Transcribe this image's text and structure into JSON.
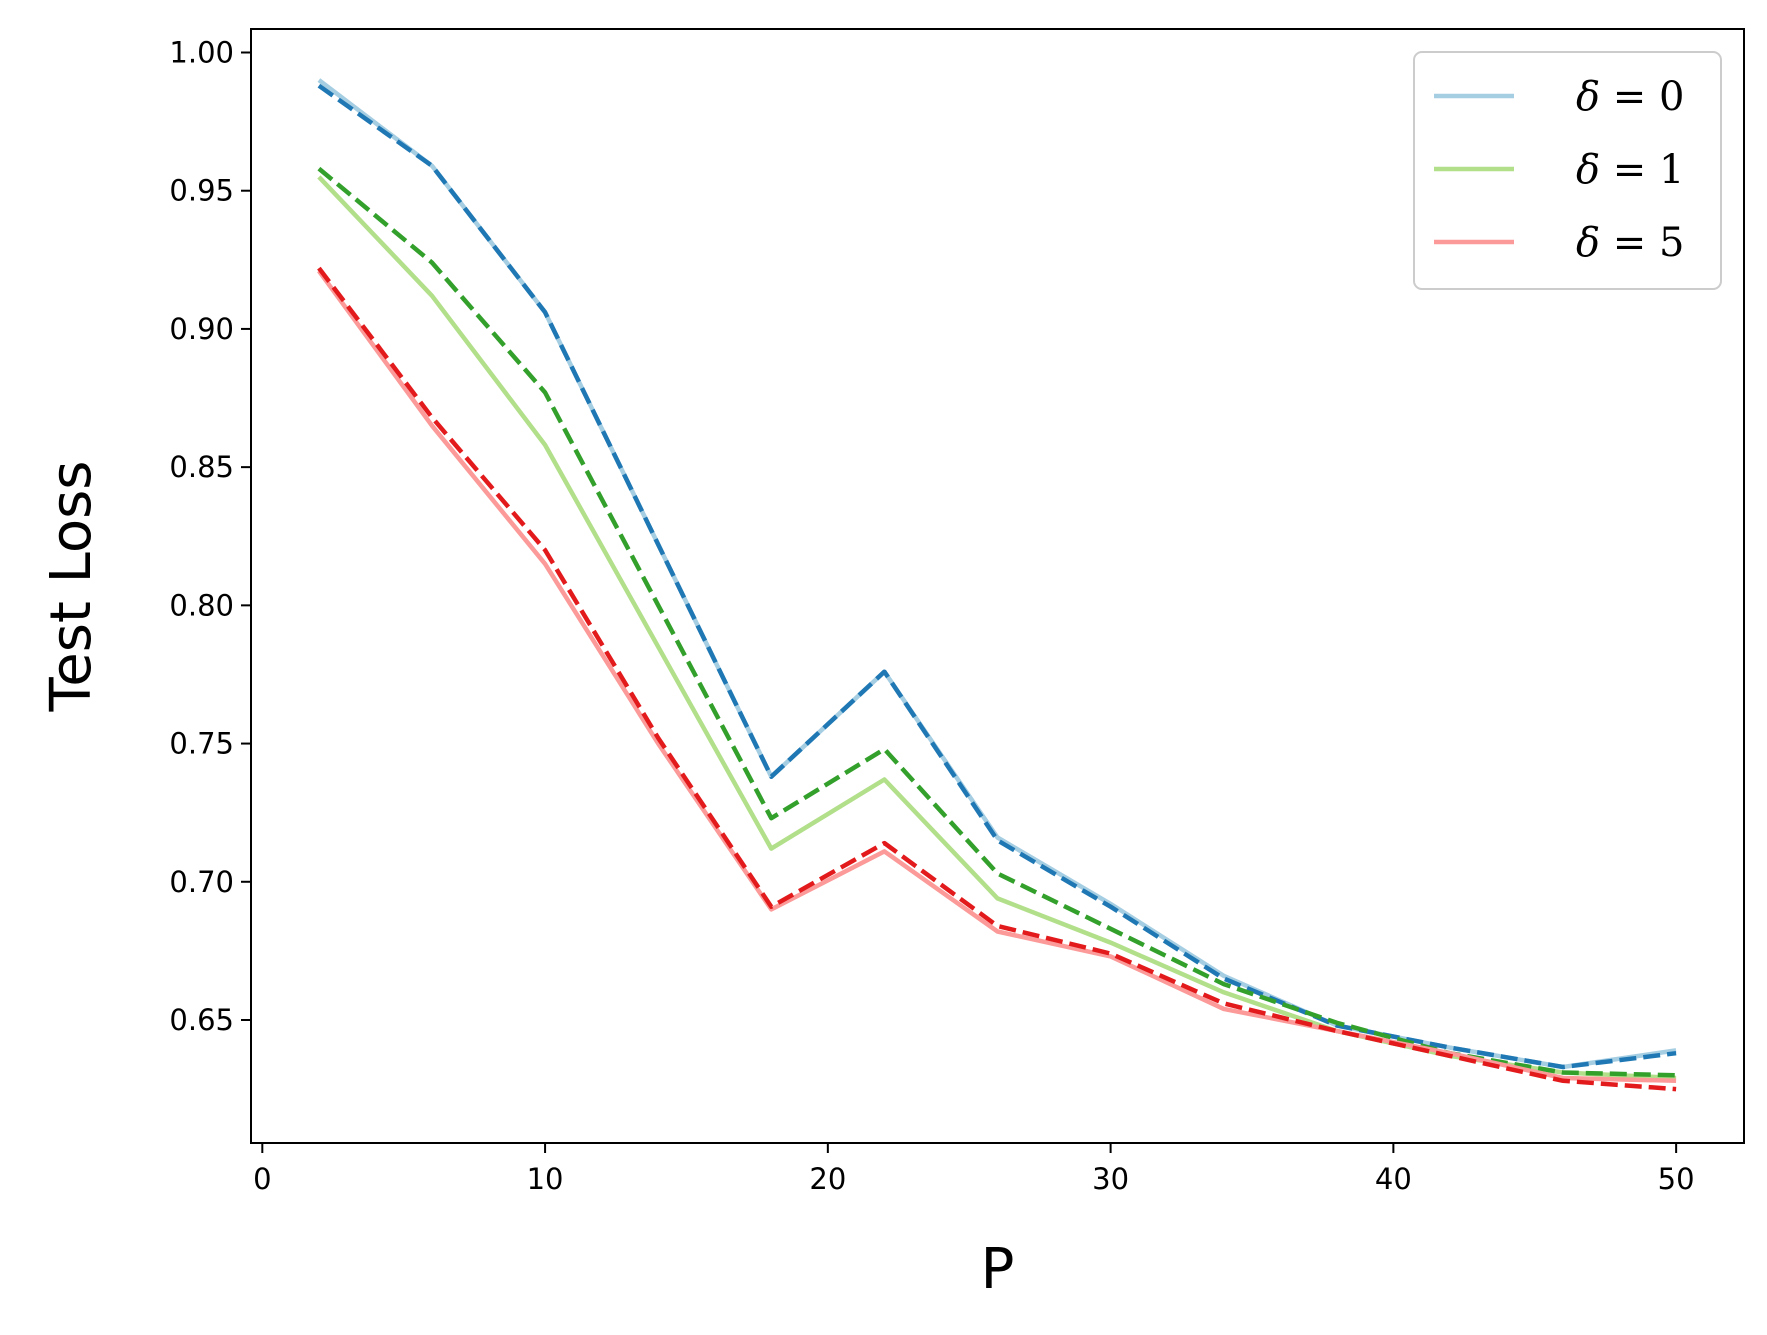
{
  "chart_data": {
    "type": "line",
    "title": "",
    "xlabel": "P",
    "ylabel": "Test Loss",
    "xlim": [
      -0.4,
      52.4
    ],
    "ylim": [
      0.6055,
      1.0085
    ],
    "xticks": [
      0,
      10,
      20,
      30,
      40,
      50
    ],
    "xtick_labels": [
      "0",
      "10",
      "20",
      "30",
      "40",
      "50"
    ],
    "yticks": [
      0.65,
      0.7,
      0.75,
      0.8,
      0.85,
      0.9,
      0.95,
      1.0
    ],
    "ytick_labels": [
      "0.65",
      "0.70",
      "0.75",
      "0.80",
      "0.85",
      "0.90",
      "0.95",
      "1.00"
    ],
    "grid": false,
    "legend_position": "top-right",
    "x": [
      2,
      6,
      10,
      14,
      18,
      22,
      26,
      30,
      34,
      38,
      42,
      46,
      50
    ],
    "series": [
      {
        "name": "δ = 0",
        "legend_var": "δ",
        "legend_rest": " = 0",
        "color": "#a6cee3",
        "style": "solid",
        "in_legend": true,
        "values": [
          0.99,
          0.959,
          0.906,
          0.822,
          0.738,
          0.776,
          0.716,
          0.692,
          0.666,
          0.648,
          0.64,
          0.633,
          0.639
        ]
      },
      {
        "name": "",
        "color": "#1f78b4",
        "style": "dashed",
        "in_legend": false,
        "values": [
          0.988,
          0.959,
          0.906,
          0.822,
          0.738,
          0.776,
          0.715,
          0.691,
          0.665,
          0.648,
          0.64,
          0.633,
          0.638
        ]
      },
      {
        "name": "δ = 1",
        "legend_var": "δ",
        "legend_rest": " = 1",
        "color": "#b2df8a",
        "style": "solid",
        "in_legend": true,
        "values": [
          0.955,
          0.912,
          0.858,
          0.785,
          0.712,
          0.737,
          0.694,
          0.678,
          0.66,
          0.646,
          0.637,
          0.631,
          0.629
        ]
      },
      {
        "name": "",
        "color": "#33a02c",
        "style": "dashed",
        "in_legend": false,
        "values": [
          0.958,
          0.924,
          0.877,
          0.8,
          0.723,
          0.748,
          0.703,
          0.683,
          0.663,
          0.649,
          0.638,
          0.631,
          0.63
        ]
      },
      {
        "name": "δ = 5",
        "legend_var": "δ",
        "legend_rest": " = 5",
        "color": "#fb9a99",
        "style": "solid",
        "in_legend": true,
        "values": [
          0.921,
          0.865,
          0.815,
          0.75,
          0.69,
          0.711,
          0.682,
          0.673,
          0.654,
          0.646,
          0.638,
          0.629,
          0.628
        ]
      },
      {
        "name": "",
        "color": "#e31a1c",
        "style": "dashed",
        "in_legend": false,
        "values": [
          0.922,
          0.868,
          0.82,
          0.752,
          0.691,
          0.714,
          0.684,
          0.674,
          0.656,
          0.646,
          0.637,
          0.628,
          0.625
        ]
      }
    ]
  }
}
